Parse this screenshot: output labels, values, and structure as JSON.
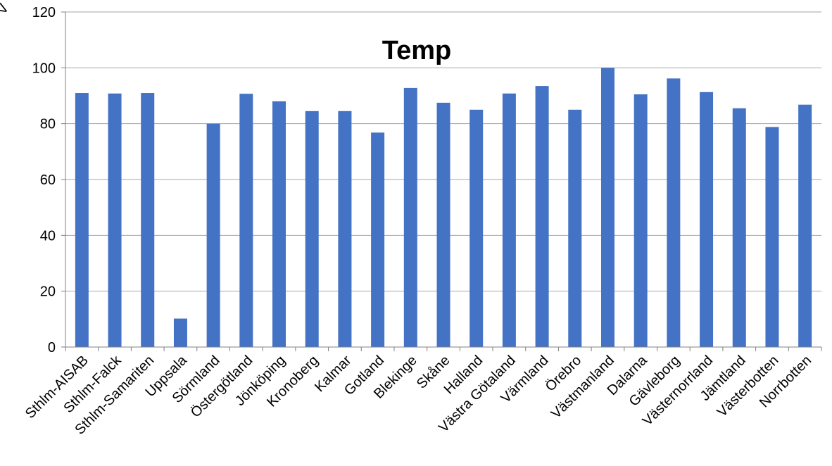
{
  "chart_data": {
    "type": "bar",
    "title": "Temp",
    "ylabel": "V",
    "xlabel": "",
    "ylim": [
      0,
      120
    ],
    "yticks": [
      0,
      20,
      40,
      60,
      80,
      100,
      120
    ],
    "grid": true,
    "legend": "none",
    "categories": [
      "Sthlm-AISAB",
      "Sthlm-Falck",
      "Sthlm-Samariten",
      "Uppsala",
      "Sörmland",
      "Östergötland",
      "Jönköping",
      "Kronoberg",
      "Kalmar",
      "Gotland",
      "Blekinge",
      "Skåne",
      "Halland",
      "Västra Götaland",
      "Värmland",
      "Örebro",
      "Västmanland",
      "Dalarna",
      "Gävleborg",
      "Västernorrland",
      "Jämtland",
      "Västerbotten",
      "Norrbotten"
    ],
    "series": [
      {
        "values": [
          91,
          90.8,
          91,
          10.2,
          80,
          90.7,
          88,
          84.5,
          84.5,
          76.8,
          92.8,
          87.5,
          85,
          90.8,
          93.5,
          85,
          100,
          90.5,
          96.2,
          91.3,
          85.5,
          78.8,
          86.8
        ]
      }
    ],
    "colors": {
      "bar": "#4472C4",
      "grid": "#A6A6A6",
      "axis": "#808080",
      "text": "#000000"
    }
  }
}
